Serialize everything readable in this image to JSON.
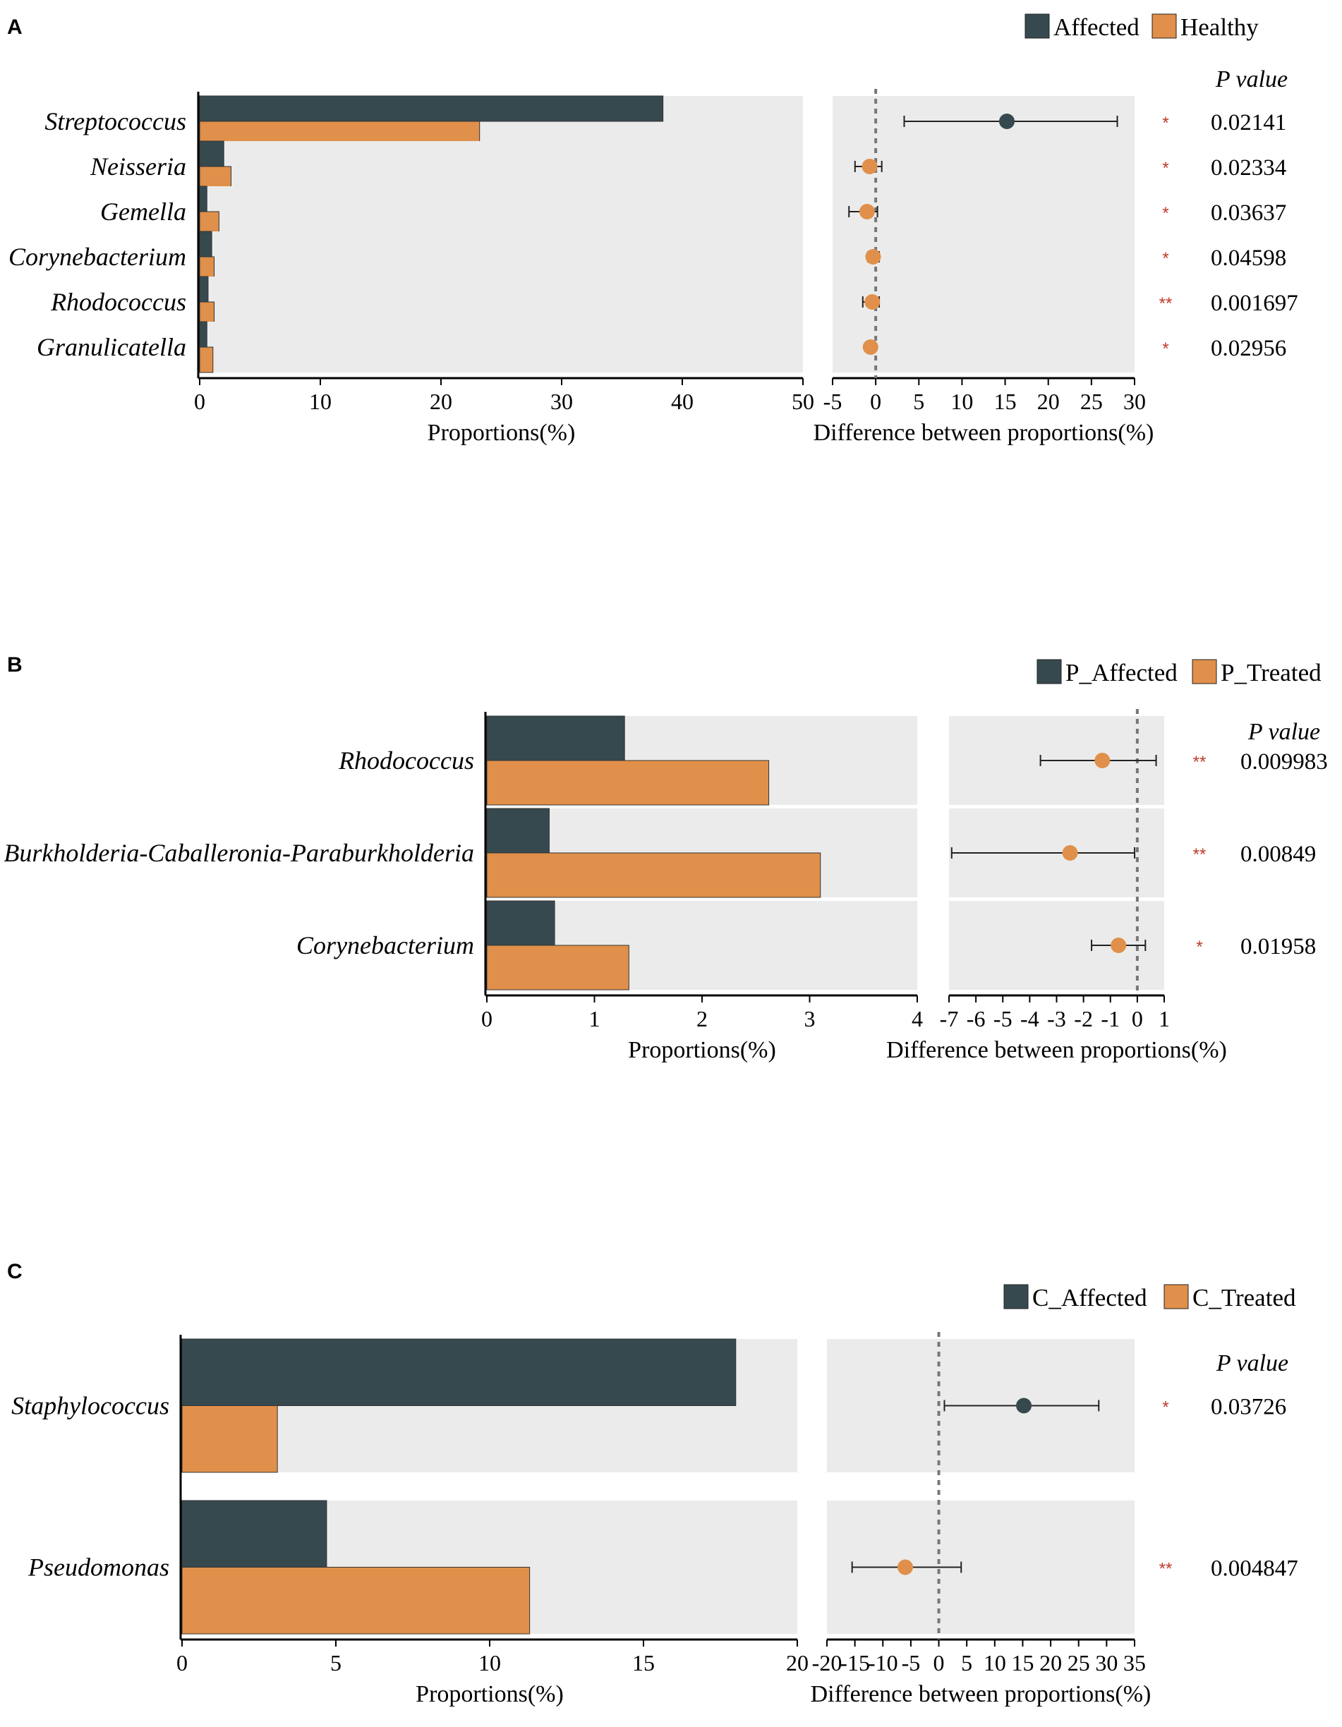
{
  "colors": {
    "affected": "#36494f",
    "healthy": "#e0904a",
    "panel_bg": "#ebebeb",
    "star": "#c0392b"
  },
  "chart_data": [
    {
      "panel": "A",
      "type": "bar",
      "legend": [
        "Affected",
        "Healthy"
      ],
      "categories": [
        "Streptococcus",
        "Neisseria",
        "Gemella",
        "Corynebacterium",
        "Rhodococcus",
        "Granulicatella"
      ],
      "series": [
        {
          "name": "Affected",
          "values": [
            38.4,
            2.0,
            0.6,
            1.0,
            0.7,
            0.6
          ]
        },
        {
          "name": "Healthy",
          "values": [
            23.2,
            2.6,
            1.6,
            1.2,
            1.2,
            1.1
          ]
        }
      ],
      "xlabel": "Proportions(%)",
      "xlim": [
        0,
        50
      ],
      "xticks": [
        0,
        10,
        20,
        30,
        40,
        50
      ],
      "diff": {
        "xlabel": "Difference between proportions(%)",
        "xlim": [
          -5,
          30
        ],
        "xticks": [
          -5,
          0,
          5,
          10,
          15,
          20,
          25,
          30
        ],
        "estimates": [
          15.2,
          -0.7,
          -1.0,
          -0.3,
          -0.4,
          -0.6
        ],
        "ci_low": [
          3.3,
          -2.4,
          -3.1,
          -0.9,
          -1.5,
          -0.8
        ],
        "ci_high": [
          28.0,
          0.7,
          0.2,
          0.4,
          0.4,
          -0.5
        ],
        "winner": [
          "Affected",
          "Healthy",
          "Healthy",
          "Healthy",
          "Healthy",
          "Healthy"
        ]
      },
      "pvalue_header": "P value",
      "pvalues": [
        "0.02141",
        "0.02334",
        "0.03637",
        "0.04598",
        "0.001697",
        "0.02956"
      ],
      "stars": [
        "*",
        "*",
        "*",
        "*",
        "**",
        "*"
      ]
    },
    {
      "panel": "B",
      "type": "bar",
      "legend": [
        "P_Affected",
        "P_Treated"
      ],
      "categories": [
        "Rhodococcus",
        "Burkholderia-Caballeronia-Paraburkholderia",
        "Corynebacterium"
      ],
      "series": [
        {
          "name": "P_Affected",
          "values": [
            1.28,
            0.58,
            0.63
          ]
        },
        {
          "name": "P_Treated",
          "values": [
            2.62,
            3.1,
            1.32
          ]
        }
      ],
      "xlabel": "Proportions(%)",
      "xlim": [
        0,
        4
      ],
      "xticks": [
        0,
        1,
        2,
        3,
        4
      ],
      "diff": {
        "xlabel": "Difference between proportions(%)",
        "xlim": [
          -7,
          1
        ],
        "xticks": [
          -7,
          -6,
          -5,
          -4,
          -3,
          -2,
          -1,
          0,
          1
        ],
        "estimates": [
          -1.3,
          -2.5,
          -0.7
        ],
        "ci_low": [
          -3.6,
          -6.9,
          -1.7
        ],
        "ci_high": [
          0.7,
          -0.1,
          0.3
        ],
        "winner": [
          "P_Treated",
          "P_Treated",
          "P_Treated"
        ]
      },
      "pvalue_header": "P value",
      "pvalues": [
        "0.009983",
        "0.00849",
        "0.01958"
      ],
      "stars": [
        "**",
        "**",
        "*"
      ]
    },
    {
      "panel": "C",
      "type": "bar",
      "legend": [
        "C_Affected",
        "C_Treated"
      ],
      "categories": [
        "Staphylococcus",
        "Pseudomonas"
      ],
      "series": [
        {
          "name": "C_Affected",
          "values": [
            18.0,
            4.7
          ]
        },
        {
          "name": "C_Treated",
          "values": [
            3.1,
            11.3
          ]
        }
      ],
      "xlabel": "Proportions(%)",
      "xlim": [
        0,
        20
      ],
      "xticks": [
        0,
        5,
        10,
        15,
        20
      ],
      "diff": {
        "xlabel": "Difference between proportions(%)",
        "xlim": [
          -20,
          35
        ],
        "xticks": [
          -20,
          -15,
          -10,
          -5,
          0,
          5,
          10,
          15,
          20,
          25,
          30,
          35
        ],
        "estimates": [
          15.2,
          -6.0
        ],
        "ci_low": [
          1.0,
          -15.5
        ],
        "ci_high": [
          28.6,
          4.0
        ],
        "winner": [
          "C_Affected",
          "C_Treated"
        ]
      },
      "pvalue_header": "P value",
      "pvalues": [
        "0.03726",
        "0.004847"
      ],
      "stars": [
        "*",
        "**"
      ]
    }
  ]
}
